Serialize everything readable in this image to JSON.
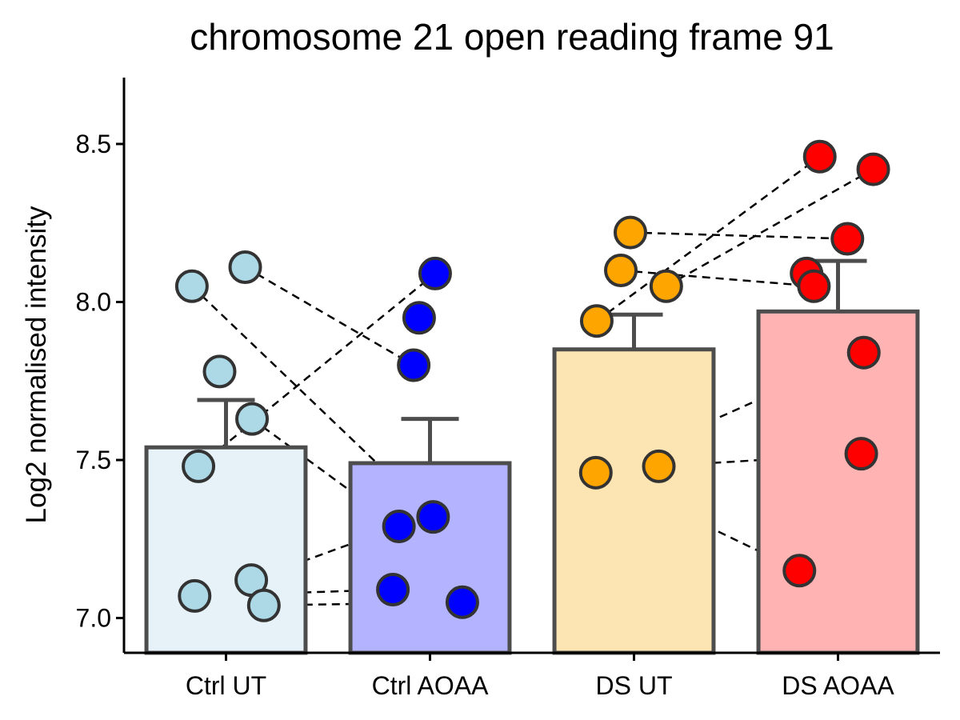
{
  "chart_data": {
    "type": "bar",
    "title": "chromosome 21 open reading frame 91",
    "xlabel": "",
    "ylabel": "Log2 normalised intensity",
    "ylim": [
      6.89,
      8.71
    ],
    "yticks": [
      7.0,
      7.5,
      8.0,
      8.5
    ],
    "ytick_labels": [
      "7.0",
      "7.5",
      "8.0",
      "8.5"
    ],
    "grid": false,
    "legend": "none",
    "categories": [
      "Ctrl UT",
      "Ctrl AOAA",
      "DS UT",
      "DS AOAA"
    ],
    "values": [
      7.54,
      7.49,
      7.85,
      7.97
    ],
    "error_upper": [
      7.69,
      7.63,
      7.96,
      8.13
    ],
    "bar_fill": [
      "#e6f2f8",
      "#b3b3ff",
      "#fde4b3",
      "#ffb3b3"
    ],
    "point_fill": [
      "#add8e6",
      "#0000ff",
      "#ffa500",
      "#ff0000"
    ],
    "outline_color": "#4d4d4d",
    "points": [
      [
        8.11,
        8.05,
        7.78,
        7.63,
        7.48,
        7.12,
        7.07,
        7.04
      ],
      [
        8.09,
        7.95,
        7.8,
        7.32,
        7.29,
        7.09,
        7.05
      ],
      [
        8.22,
        8.1,
        8.05,
        7.94,
        7.48,
        7.46
      ],
      [
        8.46,
        8.42,
        8.2,
        8.09,
        8.05,
        7.84,
        7.52,
        7.15
      ]
    ],
    "pairs": [
      {
        "group": "Ctrl",
        "from": 8.11,
        "to": 7.8
      },
      {
        "group": "Ctrl",
        "from": 8.05,
        "to": 7.32
      },
      {
        "group": "Ctrl",
        "from": 7.63,
        "to": 7.29
      },
      {
        "group": "Ctrl",
        "from": 7.48,
        "to": 8.09
      },
      {
        "group": "Ctrl",
        "from": 7.12,
        "to": 7.29
      },
      {
        "group": "Ctrl",
        "from": 7.07,
        "to": 7.09
      },
      {
        "group": "Ctrl",
        "from": 7.04,
        "to": 7.05
      },
      {
        "group": "DS",
        "from": 8.22,
        "to": 8.2
      },
      {
        "group": "DS",
        "from": 8.1,
        "to": 8.05
      },
      {
        "group": "DS",
        "from": 8.05,
        "to": 8.42
      },
      {
        "group": "DS",
        "from": 7.94,
        "to": 8.46
      },
      {
        "group": "DS",
        "from": 7.48,
        "to": 7.52
      },
      {
        "group": "DS",
        "from": 7.46,
        "to": 7.84
      },
      {
        "group": "DS",
        "from": 7.46,
        "to": 7.15
      }
    ]
  }
}
